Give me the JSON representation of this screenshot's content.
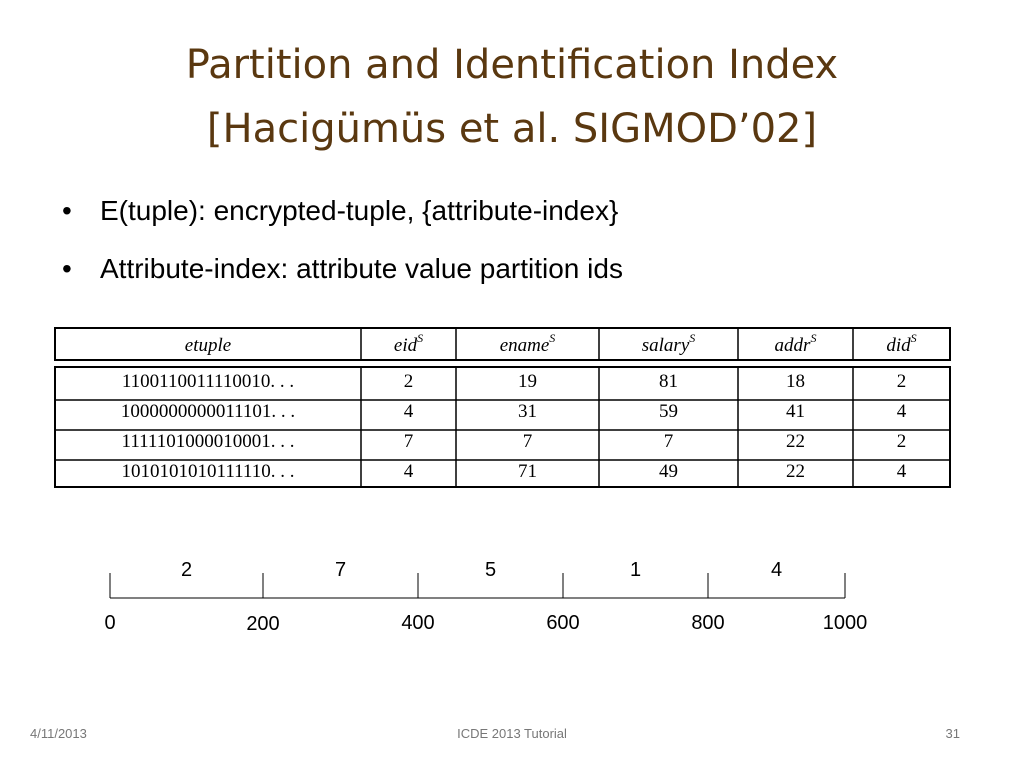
{
  "title": [
    "Partition and Identification Index",
    "[Hacigümüs et al. SIGMOD’02]"
  ],
  "bullets": [
    "E(tuple): encrypted-tuple, {attribute-index}",
    "Attribute-index: attribute value partition ids"
  ],
  "table": {
    "header": [
      {
        "name": "etuple"
      },
      {
        "name": "eid",
        "sup": "S"
      },
      {
        "name": "ename",
        "sup": "S"
      },
      {
        "name": "salary",
        "sup": "S"
      },
      {
        "name": "addr",
        "sup": "S"
      },
      {
        "name": "did",
        "sup": "S"
      }
    ],
    "rows": [
      [
        "1100110011110010. . .",
        2,
        19,
        81,
        18,
        2
      ],
      [
        "1000000000011101. . .",
        4,
        31,
        59,
        41,
        4
      ],
      [
        "1111101000010001. . .",
        7,
        7,
        7,
        22,
        2
      ],
      [
        "1010101010111110. . .",
        4,
        71,
        49,
        22,
        4
      ]
    ]
  },
  "partition": {
    "ids": [
      2,
      7,
      5,
      1,
      4
    ],
    "bounds": [
      0,
      200,
      400,
      600,
      800,
      1000
    ]
  },
  "footer": {
    "date": "4/11/2013",
    "event": "ICDE 2013 Tutorial",
    "page": "31"
  }
}
